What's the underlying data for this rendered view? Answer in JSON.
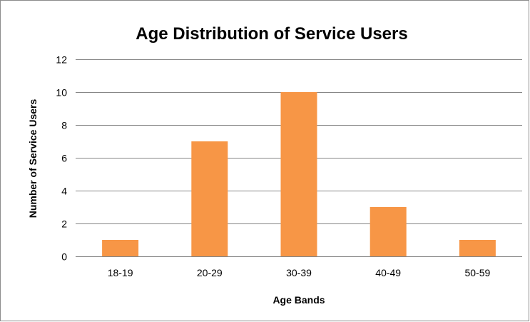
{
  "chart_data": {
    "type": "bar",
    "title": "Age Distribution of Service Users",
    "xlabel": "Age Bands",
    "ylabel": "Number of Service Users",
    "categories": [
      "18-19",
      "20-29",
      "30-39",
      "40-49",
      "50-59"
    ],
    "values": [
      1,
      7,
      10,
      3,
      1
    ],
    "ylim": [
      0,
      12
    ],
    "yticks": [
      0,
      2,
      4,
      6,
      8,
      10,
      12
    ],
    "grid": true,
    "legend": "none",
    "bar_color": "#F79646",
    "grid_color": "#868686"
  }
}
